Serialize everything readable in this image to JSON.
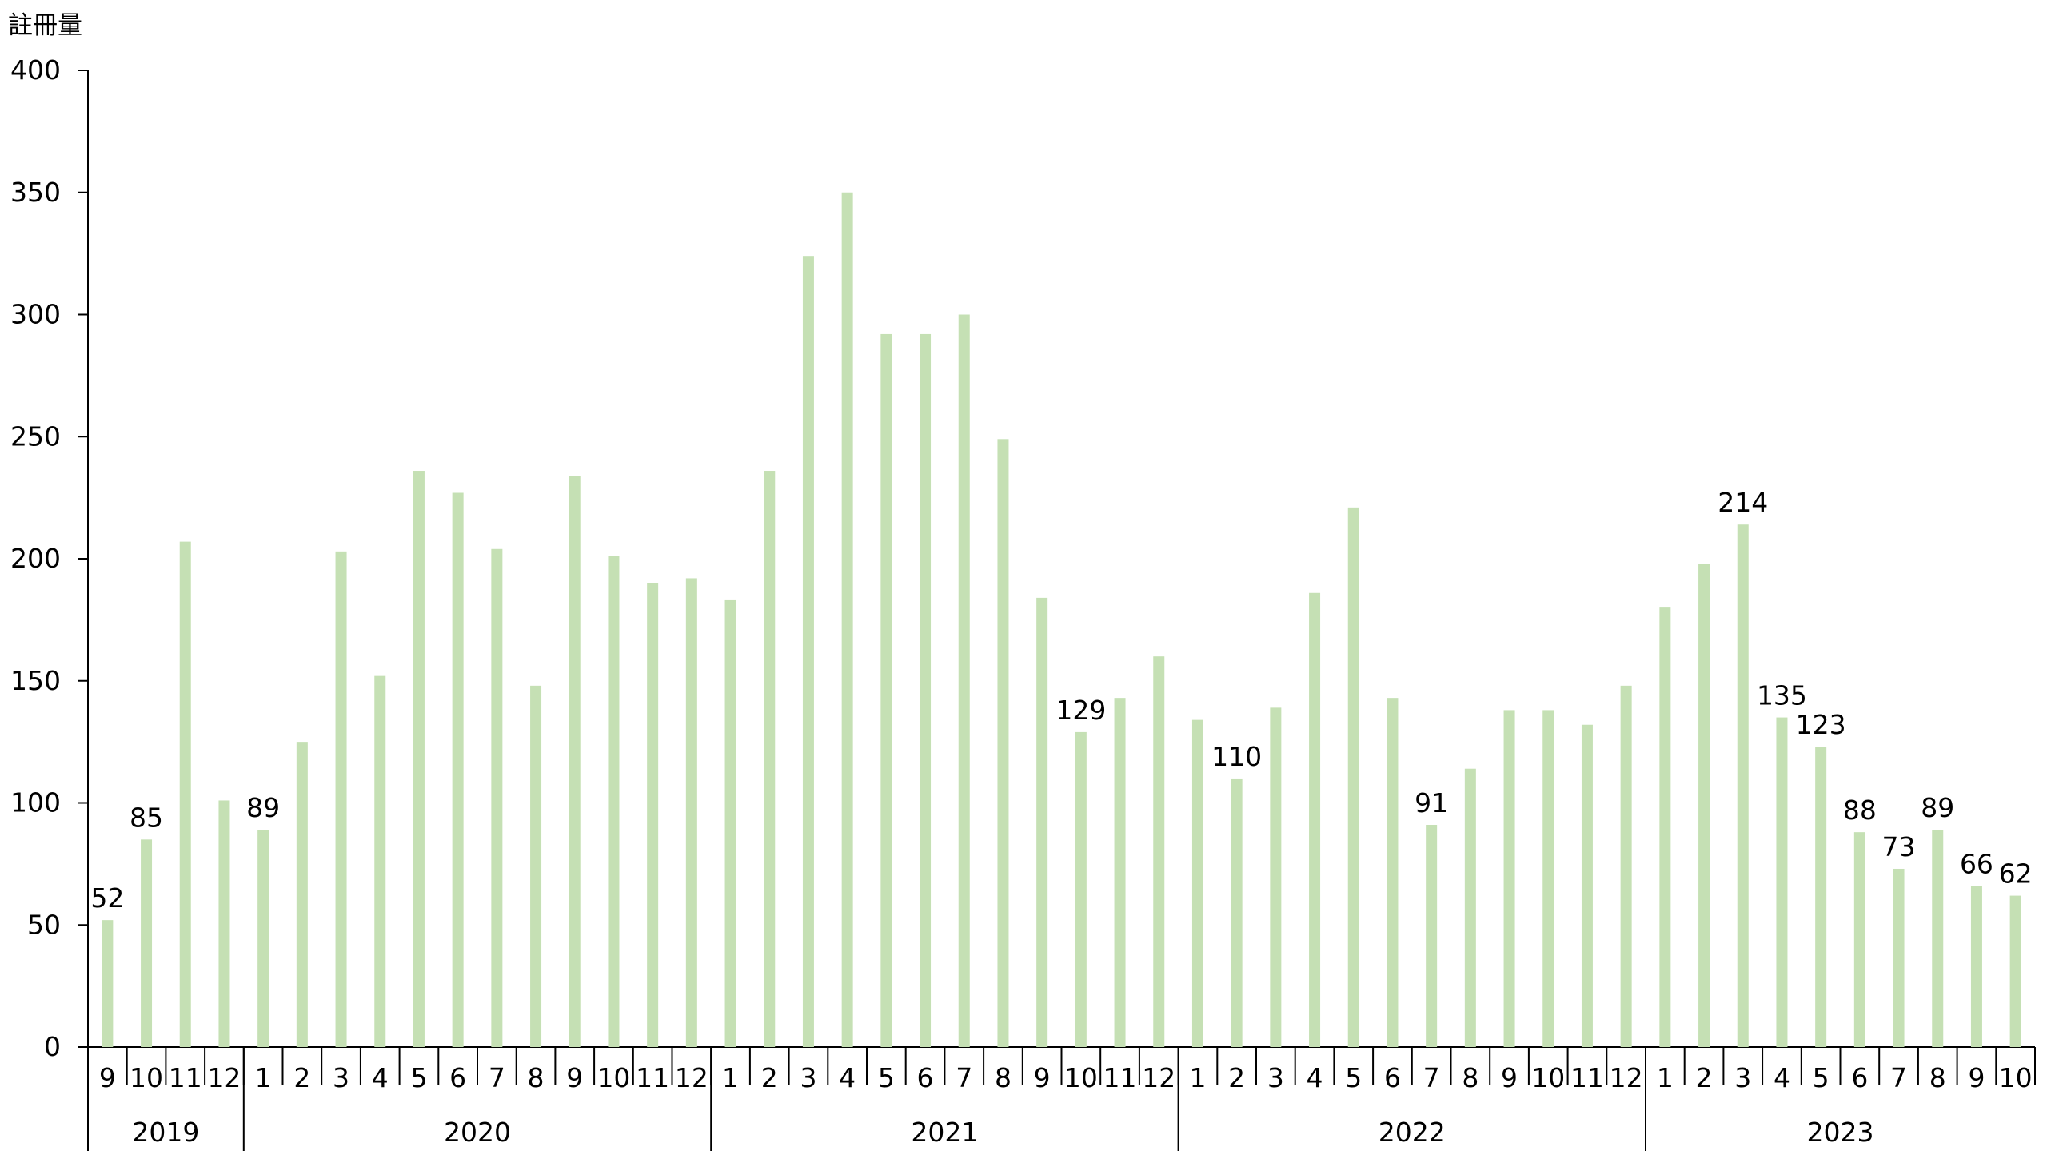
{
  "chart_data": {
    "type": "bar",
    "ylabel": "註冊量",
    "ylim": [
      0,
      400
    ],
    "yticks": [
      0,
      50,
      100,
      150,
      200,
      250,
      300,
      350,
      400
    ],
    "bar_color": "#c5e0b4",
    "axis_color": "#000000",
    "categories": [
      "9",
      "10",
      "11",
      "12",
      "1",
      "2",
      "3",
      "4",
      "5",
      "6",
      "7",
      "8",
      "9",
      "10",
      "11",
      "12",
      "1",
      "2",
      "3",
      "4",
      "5",
      "6",
      "7",
      "8",
      "9",
      "10",
      "11",
      "12",
      "1",
      "2",
      "3",
      "4",
      "5",
      "6",
      "7",
      "8",
      "9",
      "10",
      "11",
      "12",
      "1",
      "2",
      "3",
      "4",
      "5",
      "6",
      "7",
      "8",
      "9",
      "10"
    ],
    "values": [
      52,
      85,
      207,
      101,
      89,
      125,
      203,
      152,
      236,
      227,
      204,
      148,
      234,
      201,
      190,
      192,
      183,
      236,
      324,
      350,
      292,
      292,
      300,
      249,
      184,
      129,
      143,
      160,
      134,
      110,
      139,
      186,
      221,
      143,
      91,
      114,
      138,
      138,
      132,
      148,
      180,
      198,
      214,
      135,
      123,
      88,
      73,
      89,
      66,
      62
    ],
    "data_labels": [
      "52",
      "85",
      "",
      "",
      "89",
      "",
      "",
      "",
      "",
      "",
      "",
      "",
      "",
      "",
      "",
      "",
      "",
      "",
      "",
      "",
      "",
      "",
      "",
      "",
      "",
      "129",
      "",
      "",
      "",
      "110",
      "",
      "",
      "",
      "",
      "91",
      "",
      "",
      "",
      "",
      "",
      "",
      "",
      "214",
      "135",
      "123",
      "88",
      "73",
      "89",
      "66",
      "62"
    ],
    "years": [
      {
        "label": "2019",
        "count": 4
      },
      {
        "label": "2020",
        "count": 12
      },
      {
        "label": "2021",
        "count": 12
      },
      {
        "label": "2022",
        "count": 12
      },
      {
        "label": "2023",
        "count": 10
      }
    ]
  }
}
